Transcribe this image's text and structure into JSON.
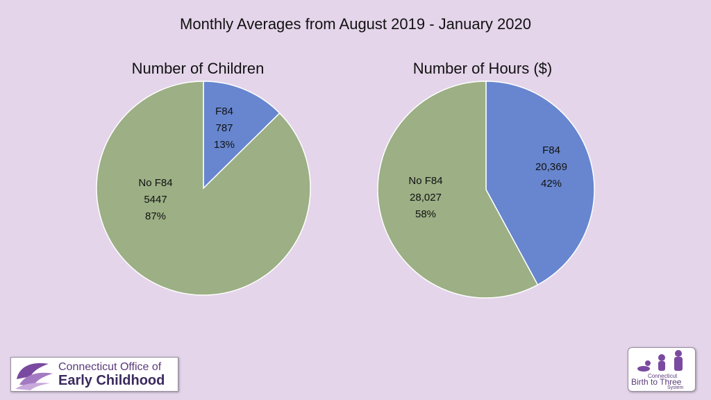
{
  "slide": {
    "title": "Monthly Averages from August 2019 - January 2020"
  },
  "chart_data": [
    {
      "type": "pie",
      "title": "Number of Children",
      "slices": [
        {
          "label": "F84",
          "value_text": "787",
          "value": 787,
          "percent_text": "13%",
          "color": "#6786cf"
        },
        {
          "label": "No F84",
          "value_text": "5447",
          "value": 5447,
          "percent_text": "87%",
          "color": "#9caf85"
        }
      ]
    },
    {
      "type": "pie",
      "title": "Number of Hours ($)",
      "slices": [
        {
          "label": "F84",
          "value_text": "20,369",
          "value": 20369,
          "percent_text": "42%",
          "color": "#6786cf"
        },
        {
          "label": "No F84",
          "value_text": "28,027",
          "value": 28027,
          "percent_text": "58%",
          "color": "#9caf85"
        }
      ]
    }
  ],
  "logos": {
    "oec": {
      "line1": "Connecticut Office of",
      "line2": "Early Childhood"
    },
    "b23": {
      "small": "Connecticut",
      "main": "Birth to Three",
      "sub": "System"
    }
  }
}
